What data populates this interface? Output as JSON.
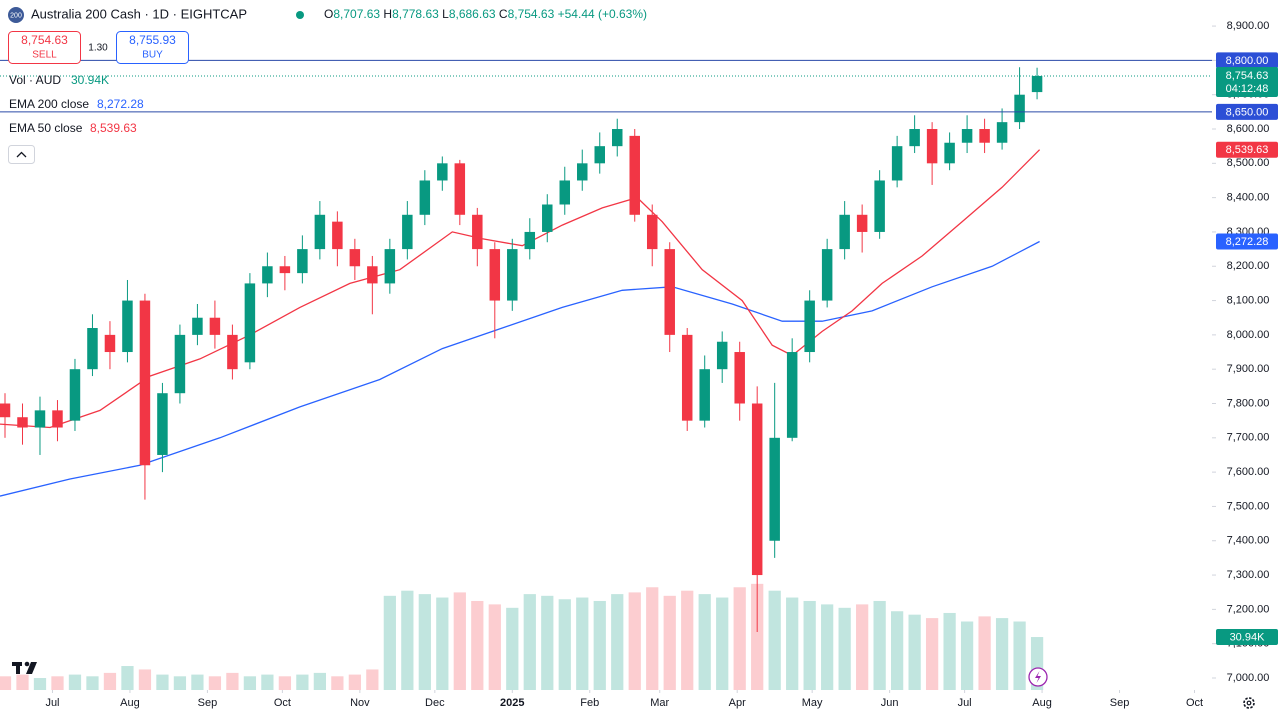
{
  "header": {
    "badge": "200",
    "title": "Australia 200 Cash · 1D · EIGHTCAP",
    "ohlc": [
      {
        "key": "O",
        "value": "8,707.63"
      },
      {
        "key": "H",
        "value": "8,778.63"
      },
      {
        "key": "L",
        "value": "8,686.63"
      },
      {
        "key": "C",
        "value": "8,754.63"
      }
    ],
    "change": "+54.44 (+0.63%)"
  },
  "trade": {
    "sell_price": "8,754.63",
    "sell_label": "SELL",
    "spread": "1.30",
    "buy_price": "8,755.93",
    "buy_label": "BUY"
  },
  "chart_data": {
    "type": "candlestick",
    "x": [
      -19,
      -12,
      -5,
      2,
      9,
      16,
      23,
      30,
      37,
      44,
      51,
      58,
      65,
      72,
      79,
      86,
      93,
      100,
      107,
      114,
      121,
      128,
      135,
      142,
      149,
      156,
      163,
      170,
      177,
      184,
      191,
      198,
      205,
      212,
      219,
      226,
      233,
      240,
      247,
      254,
      261,
      268,
      275,
      282,
      289,
      296,
      303,
      310,
      317,
      324,
      331,
      338,
      345,
      352,
      359,
      366,
      373,
      380,
      387,
      394
    ],
    "open": [
      7800,
      7760,
      7730,
      7780,
      7750,
      7900,
      8000,
      7950,
      8100,
      7650,
      7830,
      8000,
      8050,
      8000,
      7920,
      8150,
      8200,
      8180,
      8250,
      8330,
      8250,
      8200,
      8150,
      8250,
      8350,
      8450,
      8500,
      8350,
      8250,
      8100,
      8250,
      8300,
      8380,
      8450,
      8500,
      8550,
      8580,
      8350,
      8250,
      8000,
      7750,
      7900,
      7950,
      7800,
      7400,
      7700,
      7950,
      8100,
      8250,
      8350,
      8300,
      8450,
      8550,
      8600,
      8500,
      8560,
      8600,
      8560,
      8620,
      8707.63
    ],
    "high": [
      7830,
      7800,
      7820,
      7810,
      7930,
      8060,
      8040,
      8160,
      8120,
      7860,
      8030,
      8090,
      8100,
      8030,
      8180,
      8240,
      8230,
      8290,
      8390,
      8360,
      8280,
      8230,
      8280,
      8390,
      8480,
      8520,
      8510,
      8370,
      8270,
      8280,
      8340,
      8410,
      8490,
      8540,
      8590,
      8630,
      8600,
      8380,
      8270,
      8020,
      7940,
      8010,
      7980,
      7850,
      7860,
      7990,
      8130,
      8280,
      8390,
      8380,
      8480,
      8580,
      8640,
      8620,
      8590,
      8640,
      8630,
      8660,
      8780,
      8778.63
    ],
    "low": [
      7700,
      7680,
      7650,
      7690,
      7720,
      7880,
      7900,
      7920,
      7520,
      7600,
      7800,
      7970,
      7960,
      7870,
      7900,
      8110,
      8130,
      8150,
      8220,
      8200,
      8160,
      8060,
      8120,
      8220,
      8320,
      8420,
      8320,
      8200,
      7990,
      8070,
      8220,
      8270,
      8350,
      8420,
      8470,
      8520,
      8330,
      8200,
      7950,
      7720,
      7730,
      7860,
      7750,
      7134,
      7350,
      7690,
      7920,
      8080,
      8220,
      8240,
      8280,
      8430,
      8530,
      8437,
      8480,
      8530,
      8530,
      8540,
      8600,
      8686.63
    ],
    "close": [
      7760,
      7730,
      7780,
      7730,
      7900,
      8020,
      7950,
      8100,
      7620,
      7830,
      8000,
      8050,
      8000,
      7900,
      8150,
      8200,
      8180,
      8250,
      8350,
      8250,
      8200,
      8150,
      8250,
      8350,
      8450,
      8500,
      8350,
      8250,
      8100,
      8250,
      8300,
      8380,
      8450,
      8500,
      8550,
      8600,
      8350,
      8250,
      8000,
      7750,
      7900,
      7980,
      7800,
      7300,
      7700,
      7950,
      8100,
      8250,
      8350,
      8300,
      8450,
      8550,
      8600,
      8500,
      8560,
      8600,
      8560,
      8620,
      8700,
      8754.63
    ],
    "up_color": "#089981",
    "down_color": "#f23645",
    "xlim": [
      -21,
      464
    ],
    "ylim": [
      6965,
      8976
    ],
    "y2lim": [
      0,
      403
    ],
    "grid": false,
    "xticks": [
      {
        "value": 0,
        "label": "Jul"
      },
      {
        "value": 31,
        "label": "Aug"
      },
      {
        "value": 62,
        "label": "Sep"
      },
      {
        "value": 92,
        "label": "Oct"
      },
      {
        "value": 123,
        "label": "Nov"
      },
      {
        "value": 153,
        "label": "Dec"
      },
      {
        "value": 184,
        "label": "2025"
      },
      {
        "value": 215,
        "label": "Feb"
      },
      {
        "value": 243,
        "label": "Mar"
      },
      {
        "value": 274,
        "label": "Apr"
      },
      {
        "value": 304,
        "label": "May"
      },
      {
        "value": 335,
        "label": "Jun"
      },
      {
        "value": 365,
        "label": "Jul"
      },
      {
        "value": 396,
        "label": "Aug"
      },
      {
        "value": 427,
        "label": "Sep"
      },
      {
        "value": 457,
        "label": "Oct"
      }
    ],
    "yticks": [
      {
        "value": 7000,
        "label": "7,000.00"
      },
      {
        "value": 7100,
        "label": "7,100.00"
      },
      {
        "value": 7200,
        "label": "7,200.00"
      },
      {
        "value": 7300,
        "label": "7,300.00"
      },
      {
        "value": 7400,
        "label": "7,400.00"
      },
      {
        "value": 7500,
        "label": "7,500.00"
      },
      {
        "value": 7600,
        "label": "7,600.00"
      },
      {
        "value": 7700,
        "label": "7,700.00"
      },
      {
        "value": 7800,
        "label": "7,800.00"
      },
      {
        "value": 7900,
        "label": "7,900.00"
      },
      {
        "value": 8000,
        "label": "8,000.00"
      },
      {
        "value": 8100,
        "label": "8,100.00"
      },
      {
        "value": 8200,
        "label": "8,200.00"
      },
      {
        "value": 8300,
        "label": "8,300.00"
      },
      {
        "value": 8400,
        "label": "8,400.00"
      },
      {
        "value": 8500,
        "label": "8,500.00"
      },
      {
        "value": 8600,
        "label": "8,600.00"
      },
      {
        "value": 8700,
        "label": "8,700.00"
      },
      {
        "value": 8800,
        "label": "8,800.00"
      },
      {
        "value": 8900,
        "label": "8,900.00"
      }
    ],
    "series": [
      {
        "name": "Vol · AUD",
        "type": "bar",
        "axis": "y2",
        "color": "#089981",
        "values": [
          8,
          9,
          7,
          8,
          9,
          8,
          10,
          14,
          12,
          9,
          8,
          9,
          8,
          10,
          8,
          9,
          8,
          9,
          10,
          8,
          9,
          12,
          55,
          58,
          56,
          54,
          57,
          52,
          50,
          48,
          56,
          55,
          53,
          54,
          52,
          56,
          57,
          60,
          55,
          58,
          56,
          54,
          60,
          62,
          58,
          54,
          52,
          50,
          48,
          50,
          52,
          46,
          44,
          42,
          45,
          40,
          43,
          42,
          40,
          30.94
        ],
        "last_label": "30.94K"
      },
      {
        "name": "EMA 200 close",
        "type": "line",
        "color": "#2962ff",
        "x": [
          -21,
          7,
          35,
          67,
          99,
          131,
          156,
          180,
          204,
          228,
          248,
          272,
          292,
          308,
          328,
          352,
          376,
          395
        ],
        "values": [
          7530,
          7580,
          7620,
          7700,
          7790,
          7870,
          7960,
          8020,
          8080,
          8130,
          8140,
          8090,
          8040,
          8040,
          8070,
          8140,
          8200,
          8272.28
        ],
        "last_label": "8,272.28"
      },
      {
        "name": "EMA 50 close",
        "type": "line",
        "color": "#f23645",
        "x": [
          -21,
          -1,
          19,
          39,
          59,
          79,
          99,
          119,
          139,
          160,
          172,
          188,
          204,
          220,
          234,
          244,
          260,
          276,
          288,
          296,
          308,
          320,
          332,
          348,
          364,
          380,
          395
        ],
        "values": [
          7740,
          7730,
          7780,
          7880,
          7930,
          8000,
          8080,
          8150,
          8190,
          8300,
          8280,
          8260,
          8320,
          8370,
          8400,
          8330,
          8190,
          8100,
          7970,
          7940,
          8010,
          8070,
          8150,
          8230,
          8330,
          8430,
          8539.63
        ],
        "last_label": "8,539.63"
      }
    ],
    "hlines": [
      {
        "value": 8800,
        "label": "8,800.00",
        "color": "#2a4aa8"
      },
      {
        "value": 8650,
        "label": "8,650.00",
        "color": "#2a4aa8"
      }
    ],
    "last_price": {
      "value": 8754.63,
      "label": "8,754.63",
      "countdown": "04:12:48",
      "color": "#089981"
    }
  }
}
